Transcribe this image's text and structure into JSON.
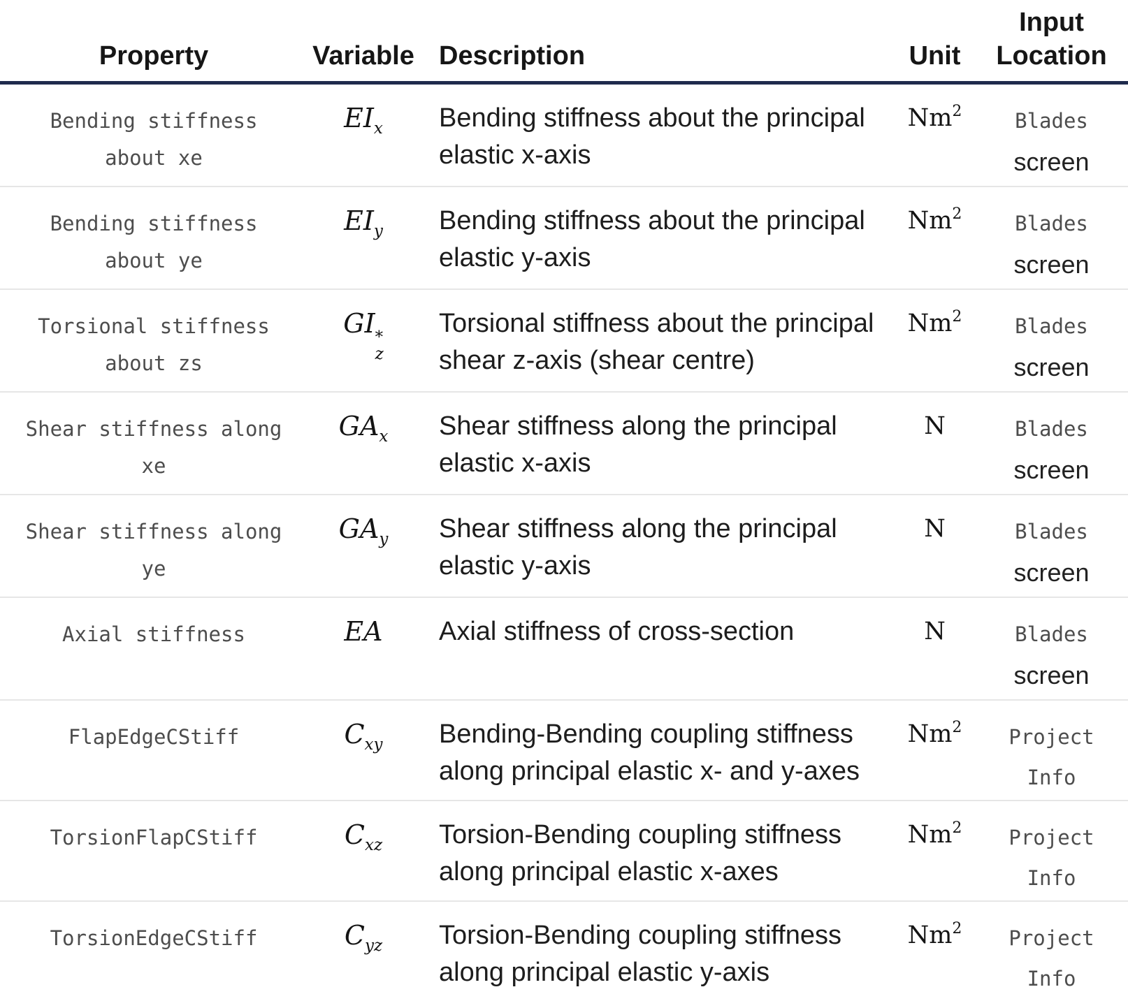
{
  "colors": {
    "header_rule": "#1f2b4d",
    "row_separator": "#e6e6e6",
    "body_text": "#1d1d1d",
    "code_text": "#4d4d4d",
    "background": "#ffffff"
  },
  "table": {
    "headers": {
      "property": "Property",
      "variable": "Variable",
      "description": "Description",
      "unit": "Unit",
      "input_location": "Input\nLocation"
    },
    "rows": [
      {
        "property": "Bending stiffness\nabout xe",
        "variable": {
          "main": "EI",
          "sub": "x",
          "sup": ""
        },
        "description": "Bending stiffness about the principal\nelastic x-axis",
        "unit": {
          "base": "Nm",
          "sup": "2"
        },
        "location": [
          {
            "text": "Blades",
            "style": "code"
          },
          {
            "text": "screen",
            "style": "plain"
          }
        ]
      },
      {
        "property": "Bending stiffness\nabout ye",
        "variable": {
          "main": "EI",
          "sub": "y",
          "sup": ""
        },
        "description": "Bending stiffness about the principal\nelastic y-axis",
        "unit": {
          "base": "Nm",
          "sup": "2"
        },
        "location": [
          {
            "text": "Blades",
            "style": "code"
          },
          {
            "text": "screen",
            "style": "plain"
          }
        ]
      },
      {
        "property": "Torsional stiffness\nabout zs",
        "variable": {
          "main": "GI",
          "sub": "z",
          "sup": "*"
        },
        "description": "Torsional stiffness about the principal\nshear z-axis (shear centre)",
        "unit": {
          "base": "Nm",
          "sup": "2"
        },
        "location": [
          {
            "text": "Blades",
            "style": "code"
          },
          {
            "text": "screen",
            "style": "plain"
          }
        ]
      },
      {
        "property": "Shear stiffness along\nxe",
        "variable": {
          "main": "GA",
          "sub": "x",
          "sup": ""
        },
        "description": "Shear stiffness along the principal\nelastic x-axis",
        "unit": {
          "base": "N",
          "sup": ""
        },
        "location": [
          {
            "text": "Blades",
            "style": "code"
          },
          {
            "text": "screen",
            "style": "plain"
          }
        ]
      },
      {
        "property": "Shear stiffness along\nye",
        "variable": {
          "main": "GA",
          "sub": "y",
          "sup": ""
        },
        "description": "Shear stiffness along the principal\nelastic y-axis",
        "unit": {
          "base": "N",
          "sup": ""
        },
        "location": [
          {
            "text": "Blades",
            "style": "code"
          },
          {
            "text": "screen",
            "style": "plain"
          }
        ]
      },
      {
        "property": "Axial stiffness",
        "variable": {
          "main": "EA",
          "sub": "",
          "sup": ""
        },
        "description": "Axial stiffness of cross-section",
        "unit": {
          "base": "N",
          "sup": ""
        },
        "location": [
          {
            "text": "Blades",
            "style": "code"
          },
          {
            "text": "screen",
            "style": "plain"
          }
        ]
      },
      {
        "property": "FlapEdgeCStiff",
        "variable": {
          "main": "C",
          "sub": "xy",
          "sup": ""
        },
        "description": "Bending-Bending coupling stiffness\nalong principal elastic x- and y-axes",
        "unit": {
          "base": "Nm",
          "sup": "2"
        },
        "location": [
          {
            "text": "Project",
            "style": "code"
          },
          {
            "text": "Info",
            "style": "code"
          }
        ]
      },
      {
        "property": "TorsionFlapCStiff",
        "variable": {
          "main": "C",
          "sub": "xz",
          "sup": ""
        },
        "description": "Torsion-Bending coupling stiffness\nalong principal elastic x-axes",
        "unit": {
          "base": "Nm",
          "sup": "2"
        },
        "location": [
          {
            "text": "Project",
            "style": "code"
          },
          {
            "text": "Info",
            "style": "code"
          }
        ]
      },
      {
        "property": "TorsionEdgeCStiff",
        "variable": {
          "main": "C",
          "sub": "yz",
          "sup": ""
        },
        "description": "Torsion-Bending coupling stiffness\nalong principal elastic y-axis",
        "unit": {
          "base": "Nm",
          "sup": "2"
        },
        "location": [
          {
            "text": "Project",
            "style": "code"
          },
          {
            "text": "Info",
            "style": "code"
          }
        ]
      }
    ]
  }
}
